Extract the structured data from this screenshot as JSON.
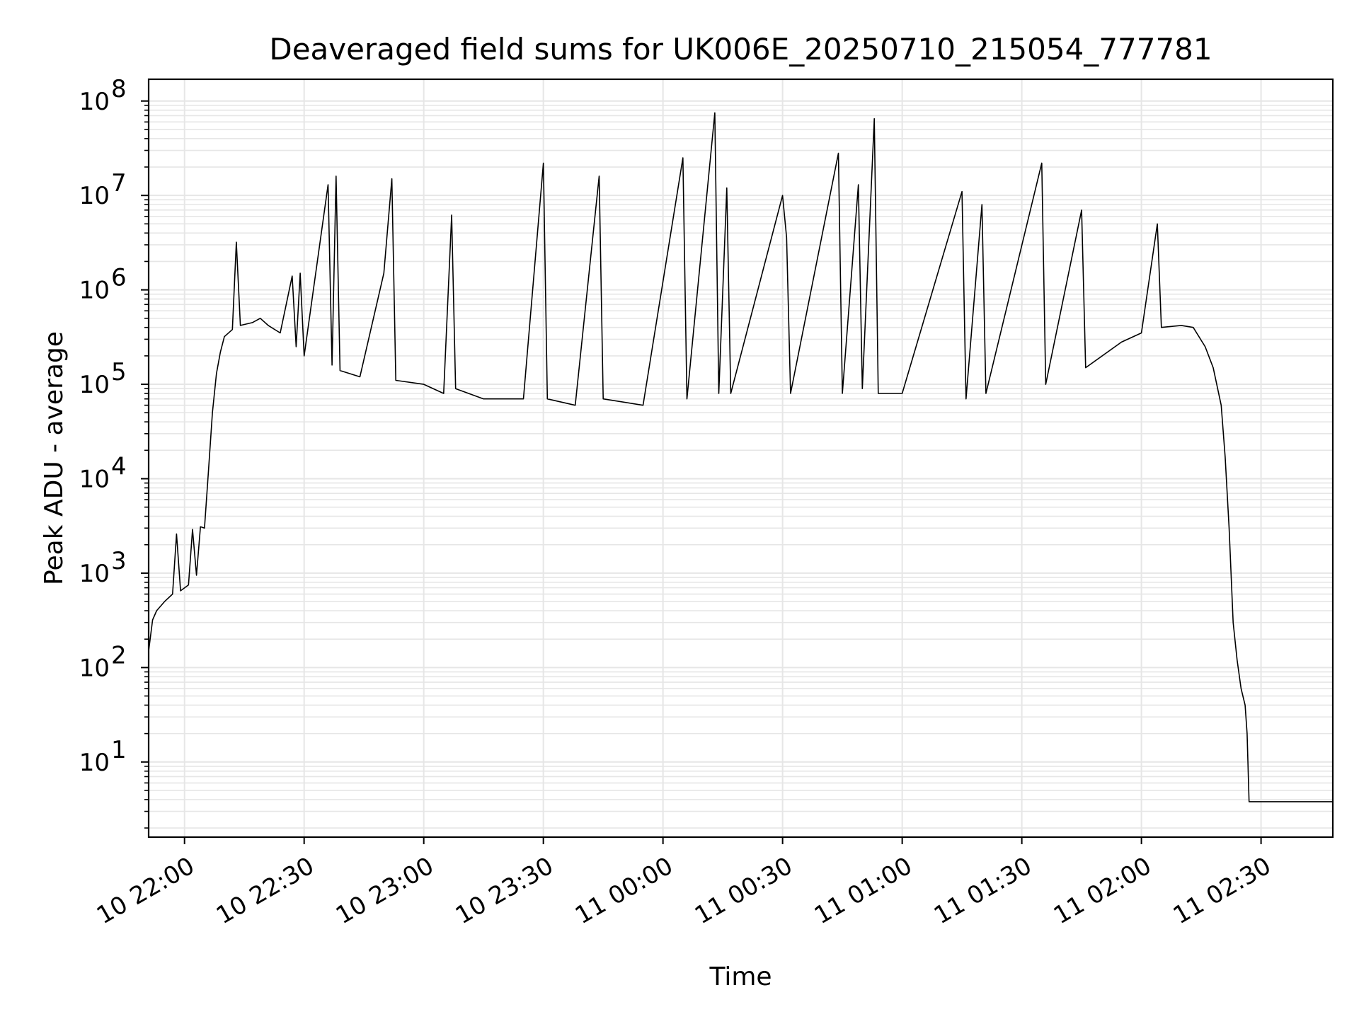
{
  "chart_data": {
    "type": "line",
    "title": "Deaveraged field sums for UK006E_20250710_215054_777781",
    "xlabel": "Time",
    "ylabel": "Peak ADU - average",
    "yscale": "log",
    "ylim": [
      1.6,
      170000000
    ],
    "xlim": [
      "2025-07-10 21:51",
      "2025-07-11 02:48"
    ],
    "x_ticks": [
      {
        "time": "2025-07-10 22:00",
        "label": "10 22:00"
      },
      {
        "time": "2025-07-10 22:30",
        "label": "10 22:30"
      },
      {
        "time": "2025-07-10 23:00",
        "label": "10 23:00"
      },
      {
        "time": "2025-07-10 23:30",
        "label": "10 23:30"
      },
      {
        "time": "2025-07-11 00:00",
        "label": "11 00:00"
      },
      {
        "time": "2025-07-11 00:30",
        "label": "11 00:30"
      },
      {
        "time": "2025-07-11 01:00",
        "label": "11 01:00"
      },
      {
        "time": "2025-07-11 01:30",
        "label": "11 01:30"
      },
      {
        "time": "2025-07-11 02:00",
        "label": "11 02:00"
      },
      {
        "time": "2025-07-11 02:30",
        "label": "11 02:30"
      }
    ],
    "y_ticks": [
      {
        "value": 10,
        "base": "10",
        "exp": "1"
      },
      {
        "value": 100,
        "base": "10",
        "exp": "2"
      },
      {
        "value": 1000,
        "base": "10",
        "exp": "3"
      },
      {
        "value": 10000,
        "base": "10",
        "exp": "4"
      },
      {
        "value": 100000,
        "base": "10",
        "exp": "5"
      },
      {
        "value": 1000000,
        "base": "10",
        "exp": "6"
      },
      {
        "value": 10000000,
        "base": "10",
        "exp": "7"
      },
      {
        "value": 100000000,
        "base": "10",
        "exp": "8"
      }
    ],
    "grid": true,
    "line_color": "#000000",
    "grid_color": "#e6e6e6",
    "series": [
      {
        "values": [
          [
            "2025-07-10 21:51",
            150
          ],
          [
            "2025-07-10 21:52",
            320
          ],
          [
            "2025-07-10 21:53",
            400
          ],
          [
            "2025-07-10 21:55",
            500
          ],
          [
            "2025-07-10 21:57",
            600
          ],
          [
            "2025-07-10 21:58",
            2600
          ],
          [
            "2025-07-10 21:59",
            650
          ],
          [
            "2025-07-10 22:01",
            750
          ],
          [
            "2025-07-10 22:02",
            2900
          ],
          [
            "2025-07-10 22:03",
            950
          ],
          [
            "2025-07-10 22:04",
            3100
          ],
          [
            "2025-07-10 22:05",
            3000
          ],
          [
            "2025-07-10 22:06",
            12000
          ],
          [
            "2025-07-10 22:07",
            50000
          ],
          [
            "2025-07-10 22:08",
            130000
          ],
          [
            "2025-07-10 22:09",
            220000
          ],
          [
            "2025-07-10 22:10",
            320000
          ],
          [
            "2025-07-10 22:12",
            380000
          ],
          [
            "2025-07-10 22:13",
            3200000
          ],
          [
            "2025-07-10 22:14",
            420000
          ],
          [
            "2025-07-10 22:17",
            450000
          ],
          [
            "2025-07-10 22:19",
            500000
          ],
          [
            "2025-07-10 22:21",
            420000
          ],
          [
            "2025-07-10 22:24",
            350000
          ],
          [
            "2025-07-10 22:27",
            1400000
          ],
          [
            "2025-07-10 22:28",
            250000
          ],
          [
            "2025-07-10 22:29",
            1500000
          ],
          [
            "2025-07-10 22:30",
            200000
          ],
          [
            "2025-07-10 22:36",
            13000000
          ],
          [
            "2025-07-10 22:37",
            160000
          ],
          [
            "2025-07-10 22:38",
            16000000
          ],
          [
            "2025-07-10 22:39",
            140000
          ],
          [
            "2025-07-10 22:44",
            120000
          ],
          [
            "2025-07-10 22:50",
            1500000
          ],
          [
            "2025-07-10 22:52",
            15000000
          ],
          [
            "2025-07-10 22:53",
            110000
          ],
          [
            "2025-07-10 23:00",
            100000
          ],
          [
            "2025-07-10 23:05",
            80000
          ],
          [
            "2025-07-10 23:07",
            6200000
          ],
          [
            "2025-07-10 23:08",
            90000
          ],
          [
            "2025-07-10 23:15",
            70000
          ],
          [
            "2025-07-10 23:25",
            70000
          ],
          [
            "2025-07-10 23:30",
            22000000
          ],
          [
            "2025-07-10 23:31",
            70000
          ],
          [
            "2025-07-10 23:38",
            60000
          ],
          [
            "2025-07-10 23:44",
            16000000
          ],
          [
            "2025-07-10 23:45",
            70000
          ],
          [
            "2025-07-10 23:55",
            60000
          ],
          [
            "2025-07-11 00:05",
            25000000
          ],
          [
            "2025-07-11 00:06",
            70000
          ],
          [
            "2025-07-11 00:13",
            75000000
          ],
          [
            "2025-07-11 00:14",
            80000
          ],
          [
            "2025-07-11 00:16",
            12000000
          ],
          [
            "2025-07-11 00:17",
            80000
          ],
          [
            "2025-07-11 00:30",
            10000000
          ],
          [
            "2025-07-11 00:31",
            3600000
          ],
          [
            "2025-07-11 00:32",
            80000
          ],
          [
            "2025-07-11 00:44",
            28000000
          ],
          [
            "2025-07-11 00:45",
            80000
          ],
          [
            "2025-07-11 00:49",
            13000000
          ],
          [
            "2025-07-11 00:50",
            90000
          ],
          [
            "2025-07-11 00:53",
            65000000
          ],
          [
            "2025-07-11 00:54",
            80000
          ],
          [
            "2025-07-11 01:00",
            80000
          ],
          [
            "2025-07-11 01:15",
            11000000
          ],
          [
            "2025-07-11 01:16",
            70000
          ],
          [
            "2025-07-11 01:20",
            8000000
          ],
          [
            "2025-07-11 01:21",
            80000
          ],
          [
            "2025-07-11 01:35",
            22000000
          ],
          [
            "2025-07-11 01:36",
            100000
          ],
          [
            "2025-07-11 01:45",
            7000000
          ],
          [
            "2025-07-11 01:46",
            150000
          ],
          [
            "2025-07-11 01:55",
            280000
          ],
          [
            "2025-07-11 02:00",
            350000
          ],
          [
            "2025-07-11 02:04",
            5000000
          ],
          [
            "2025-07-11 02:05",
            400000
          ],
          [
            "2025-07-11 02:10",
            420000
          ],
          [
            "2025-07-11 02:13",
            400000
          ],
          [
            "2025-07-11 02:16",
            250000
          ],
          [
            "2025-07-11 02:18",
            150000
          ],
          [
            "2025-07-11 02:20",
            60000
          ],
          [
            "2025-07-11 02:21",
            17000
          ],
          [
            "2025-07-11 02:22",
            3000
          ],
          [
            "2025-07-11 02:23",
            300
          ],
          [
            "2025-07-11 02:24",
            120
          ],
          [
            "2025-07-11 02:25",
            60
          ],
          [
            "2025-07-11 02:26",
            40
          ],
          [
            "2025-07-11 02:26.5",
            20
          ],
          [
            "2025-07-11 02:27",
            3.8
          ],
          [
            "2025-07-11 02:48",
            3.8
          ]
        ]
      }
    ]
  }
}
